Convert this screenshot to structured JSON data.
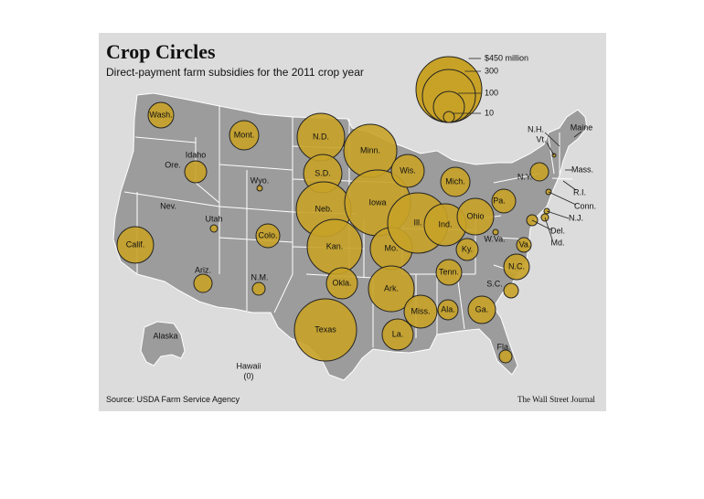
{
  "title": "Crop Circles",
  "subtitle": "Direct-payment farm subsidies for the 2011 crop year",
  "source": "Source: USDA Farm Service Agency",
  "credit": "The Wall Street Journal",
  "colors": {
    "bubble": "#c8a227",
    "map": "#9c9c9c",
    "background": "#dcdcdc",
    "border": "#ffffff"
  },
  "legend": {
    "items": [
      {
        "label": "$450 million",
        "value": 450
      },
      {
        "label": "300",
        "value": 300
      },
      {
        "label": "100",
        "value": 100
      },
      {
        "label": "10",
        "value": 10
      }
    ]
  },
  "states": [
    {
      "label": "Wash."
    },
    {
      "label": "Ore."
    },
    {
      "label": "Calif."
    },
    {
      "label": "Idaho"
    },
    {
      "label": "Nev."
    },
    {
      "label": "Mont."
    },
    {
      "label": "Wyo."
    },
    {
      "label": "Utah"
    },
    {
      "label": "Ariz."
    },
    {
      "label": "Colo."
    },
    {
      "label": "N.M."
    },
    {
      "label": "N.D."
    },
    {
      "label": "S.D."
    },
    {
      "label": "Neb."
    },
    {
      "label": "Kan."
    },
    {
      "label": "Okla."
    },
    {
      "label": "Texas"
    },
    {
      "label": "Minn."
    },
    {
      "label": "Iowa"
    },
    {
      "label": "Mo."
    },
    {
      "label": "Ark."
    },
    {
      "label": "La."
    },
    {
      "label": "Wis."
    },
    {
      "label": "Ill."
    },
    {
      "label": "Mich."
    },
    {
      "label": "Ind."
    },
    {
      "label": "Ohio"
    },
    {
      "label": "Ky."
    },
    {
      "label": "Tenn."
    },
    {
      "label": "Miss."
    },
    {
      "label": "Ala."
    },
    {
      "label": "Ga."
    },
    {
      "label": "Fla."
    },
    {
      "label": "S.C."
    },
    {
      "label": "N.C."
    },
    {
      "label": "Va."
    },
    {
      "label": "W.Va."
    },
    {
      "label": "Pa."
    },
    {
      "label": "N.Y."
    },
    {
      "label": "N.H."
    },
    {
      "label": "Vt."
    },
    {
      "label": "Maine"
    },
    {
      "label": "Mass."
    },
    {
      "label": "R.I."
    },
    {
      "label": "Conn."
    },
    {
      "label": "N.J."
    },
    {
      "label": "Del."
    },
    {
      "label": "Md."
    },
    {
      "label": "Alaska"
    },
    {
      "label": "Hawaii"
    },
    {
      "label": "(0)"
    }
  ]
}
